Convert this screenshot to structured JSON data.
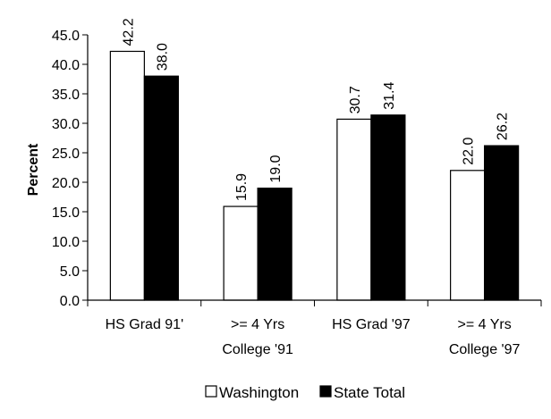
{
  "chart_data": {
    "type": "bar",
    "title": "",
    "xlabel": "",
    "ylabel": "Percent",
    "ylim": [
      0,
      45
    ],
    "y_ticks": [
      "0.0",
      "5.0",
      "10.0",
      "15.0",
      "20.0",
      "25.0",
      "30.0",
      "35.0",
      "40.0",
      "45.0"
    ],
    "grid": false,
    "legend_position": "bottom",
    "categories": [
      [
        "HS Grad 91'"
      ],
      [
        ">= 4 Yrs",
        "College '91"
      ],
      [
        "HS Grad '97"
      ],
      [
        ">= 4 Yrs",
        "College '97"
      ]
    ],
    "series": [
      {
        "name": "Washington",
        "values": [
          42.2,
          15.9,
          30.7,
          22.0
        ],
        "labels": [
          "42.2",
          "15.9",
          "30.7",
          "22.0"
        ],
        "color": "#ffffff"
      },
      {
        "name": "State Total",
        "values": [
          38.0,
          19.0,
          31.4,
          26.2
        ],
        "labels": [
          "38.0",
          "19.0",
          "31.4",
          "26.2"
        ],
        "color": "#000000"
      }
    ]
  }
}
